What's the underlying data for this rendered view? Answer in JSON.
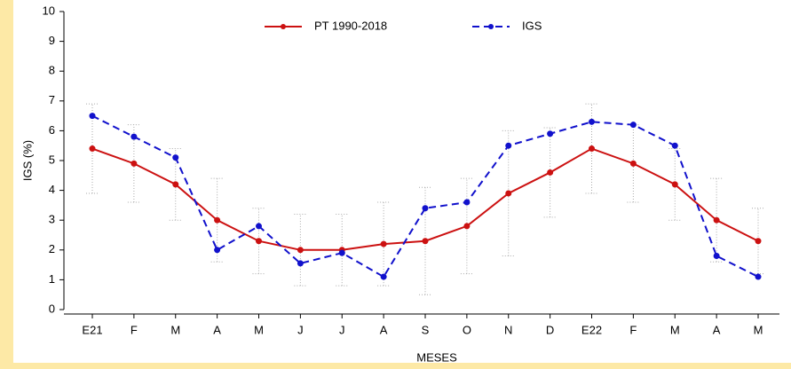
{
  "chart_data": {
    "type": "line",
    "xlabel": "MESES",
    "ylabel": "IGS (%)",
    "categories": [
      "E21",
      "F",
      "M",
      "A",
      "M",
      "J",
      "J",
      "A",
      "S",
      "O",
      "N",
      "D",
      "E22",
      "F",
      "M",
      "A",
      "M"
    ],
    "series": [
      {
        "name": "PT 1990-2018",
        "color": "#cc1111",
        "dash": false,
        "values": [
          5.4,
          4.9,
          4.2,
          3.0,
          2.3,
          2.0,
          2.0,
          2.2,
          2.3,
          2.8,
          3.9,
          4.6,
          5.4,
          4.9,
          4.2,
          3.0,
          2.3
        ],
        "range_low": [
          3.9,
          3.6,
          3.0,
          1.6,
          1.2,
          0.8,
          0.8,
          0.8,
          0.5,
          1.2,
          1.8,
          3.1,
          3.9,
          3.6,
          3.0,
          1.6,
          1.2
        ],
        "range_high": [
          6.9,
          6.2,
          5.4,
          4.4,
          3.4,
          3.2,
          3.2,
          3.6,
          4.1,
          4.4,
          6.0,
          6.1,
          6.9,
          6.2,
          5.4,
          4.4,
          3.4
        ]
      },
      {
        "name": "IGS",
        "color": "#1111cc",
        "dash": true,
        "values": [
          6.5,
          5.8,
          5.1,
          2.0,
          2.8,
          1.55,
          1.9,
          1.1,
          3.4,
          3.6,
          5.5,
          5.9,
          6.3,
          6.2,
          5.5,
          1.8,
          1.1
        ]
      }
    ],
    "ylim": [
      0,
      10
    ],
    "yticks": [
      0,
      1,
      2,
      3,
      4,
      5,
      6,
      7,
      8,
      9,
      10
    ],
    "grid": false,
    "legend": "top"
  }
}
